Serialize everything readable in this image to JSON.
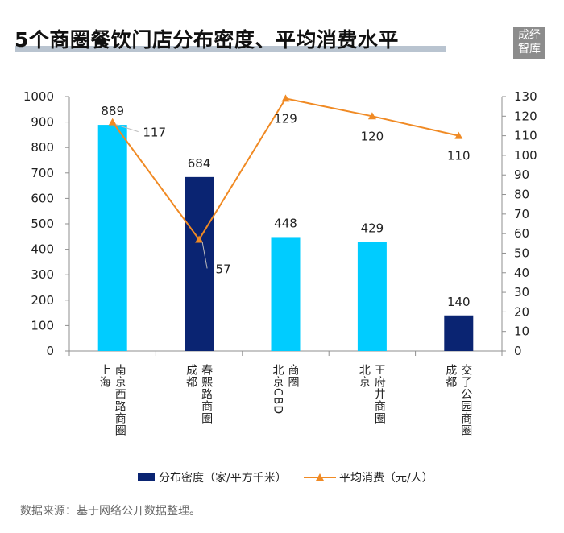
{
  "title": "5个商圈餐饮门店分布密度、平均消费水平",
  "logo_text": "成经智库",
  "source": "数据来源：基于网络公开数据整理。",
  "colors": {
    "bar_light": "#00ccff",
    "bar_dark": "#0a2472",
    "line": "#f08a24",
    "axis": "#8f8f8f",
    "title_underline": "#b9c4d0"
  },
  "chart_data": {
    "type": "bar+line",
    "categories": [
      "上海 南京西路商圈",
      "成都 春熙路商圈",
      "北京CBD 商圈",
      "北京 王府井商圈",
      "成都 交子公园商圈"
    ],
    "category_label_columns": [
      [
        "上海",
        "南京西路商圈"
      ],
      [
        "成都",
        "春熙路商圈"
      ],
      [
        "北京CBD",
        "商圈"
      ],
      [
        "北京",
        "王府井商圈"
      ],
      [
        "成都",
        "交子公园商圈"
      ]
    ],
    "series": [
      {
        "name": "分布密度（家/平方千米）",
        "type": "bar",
        "axis": "left",
        "values": [
          889,
          684,
          448,
          429,
          140
        ],
        "bar_colors": [
          "#00ccff",
          "#0a2472",
          "#00ccff",
          "#00ccff",
          "#0a2472"
        ]
      },
      {
        "name": "平均消费（元/人）",
        "type": "line",
        "axis": "right",
        "values": [
          117,
          57,
          129,
          120,
          110
        ]
      }
    ],
    "y_left": {
      "min": 0,
      "max": 1000,
      "step": 100
    },
    "y_right": {
      "min": 0,
      "max": 130,
      "step": 10
    },
    "legend_position": "bottom",
    "grid": false
  }
}
